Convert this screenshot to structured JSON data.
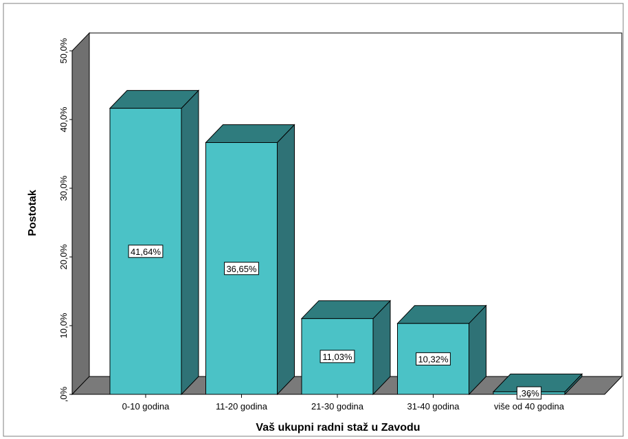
{
  "chart_data": {
    "type": "bar",
    "title": "",
    "xlabel": "Vaš ukupni radni staž u Zavodu",
    "ylabel": "Postotak",
    "categories": [
      "0-10 godina",
      "11-20 godina",
      "21-30 godina",
      "31-40 godina",
      "više od 40 godina"
    ],
    "values": [
      41.64,
      36.65,
      11.03,
      10.32,
      0.36
    ],
    "data_labels": [
      "41,64%",
      "36,65%",
      "11,03%",
      "10,32%",
      ",36%"
    ],
    "ylim": [
      0,
      50
    ],
    "yticks": [
      0,
      10,
      20,
      30,
      40,
      50
    ],
    "ytick_labels": [
      ",0%",
      "10,0%",
      "20,0%",
      "30,0%",
      "40,0%",
      "50,0%"
    ],
    "grid": false,
    "style": "3d",
    "colors": {
      "bar_front": "#4bc2c6",
      "bar_top": "#2f7c7e",
      "bar_side": "#2f7276",
      "wall": "#707070",
      "floor": "#7a7a7a",
      "plot_bg": "#ffffff"
    }
  }
}
